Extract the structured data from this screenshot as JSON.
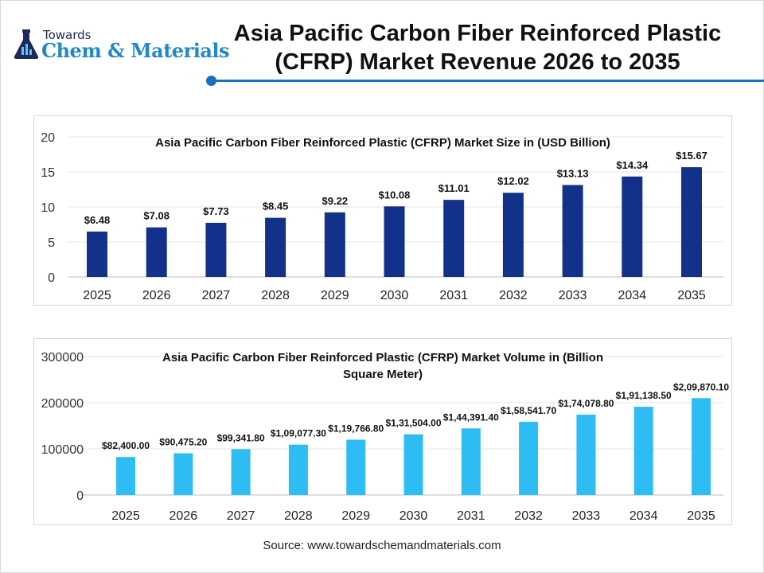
{
  "logo": {
    "line1": "Towards",
    "line2": "Chem & Materials"
  },
  "header": {
    "title_line1": "Asia Pacific Carbon Fiber Reinforced Plastic",
    "title_line2": "(CFRP) Market Revenue 2026 to 2035"
  },
  "colors": {
    "accent": "#1a6fc4",
    "revenue_bar": "#12318a",
    "volume_bar": "#2ebcf5"
  },
  "chart_data": [
    {
      "type": "bar",
      "title": "Asia Pacific Carbon Fiber Reinforced Plastic (CFRP) Market  Size in (USD Billion)",
      "categories": [
        "2025",
        "2026",
        "2027",
        "2028",
        "2029",
        "2030",
        "2031",
        "2032",
        "2033",
        "2034",
        "2035"
      ],
      "values": [
        6.48,
        7.08,
        7.73,
        8.45,
        9.22,
        10.08,
        11.01,
        12.02,
        13.13,
        14.34,
        15.67
      ],
      "data_labels": [
        "$6.48",
        "$7.08",
        "$7.73",
        "$8.45",
        "$9.22",
        "$10.08",
        "$11.01",
        "$12.02",
        "$13.13",
        "$14.34",
        "$15.67"
      ],
      "yticks": [
        "0",
        "5",
        "10",
        "15",
        "20"
      ],
      "ylim": [
        0,
        20
      ],
      "grid": true,
      "xlabel": "",
      "ylabel": ""
    },
    {
      "type": "bar",
      "title": "Asia Pacific Carbon Fiber Reinforced Plastic (CFRP) Market Volume in (Billion Square Meter)",
      "title_lines": [
        "Asia Pacific Carbon Fiber Reinforced Plastic (CFRP) Market Volume in (Billion",
        "Square Meter)"
      ],
      "categories": [
        "2025",
        "2026",
        "2027",
        "2028",
        "2029",
        "2030",
        "2031",
        "2032",
        "2033",
        "2034",
        "2035"
      ],
      "values": [
        82400.0,
        90475.2,
        99341.8,
        109077.3,
        119766.8,
        131504.0,
        144391.4,
        158541.7,
        174078.8,
        191138.5,
        209870.1
      ],
      "data_labels": [
        "$82,400.00",
        "$90,475.20",
        "$99,341.80",
        "$1,09,077.30",
        "$1,19,766.80",
        "$1,31,504.00",
        "$1,44,391.40",
        "$1,58,541.70",
        "$1,74,078.80",
        "$1,91,138.50",
        "$2,09,870.10"
      ],
      "yticks": [
        "0",
        "100000",
        "200000",
        "300000"
      ],
      "ylim": [
        0,
        300000
      ],
      "grid": true,
      "xlabel": "",
      "ylabel": ""
    }
  ],
  "footer": {
    "source": "Source: www.towardschemandmaterials.com"
  }
}
